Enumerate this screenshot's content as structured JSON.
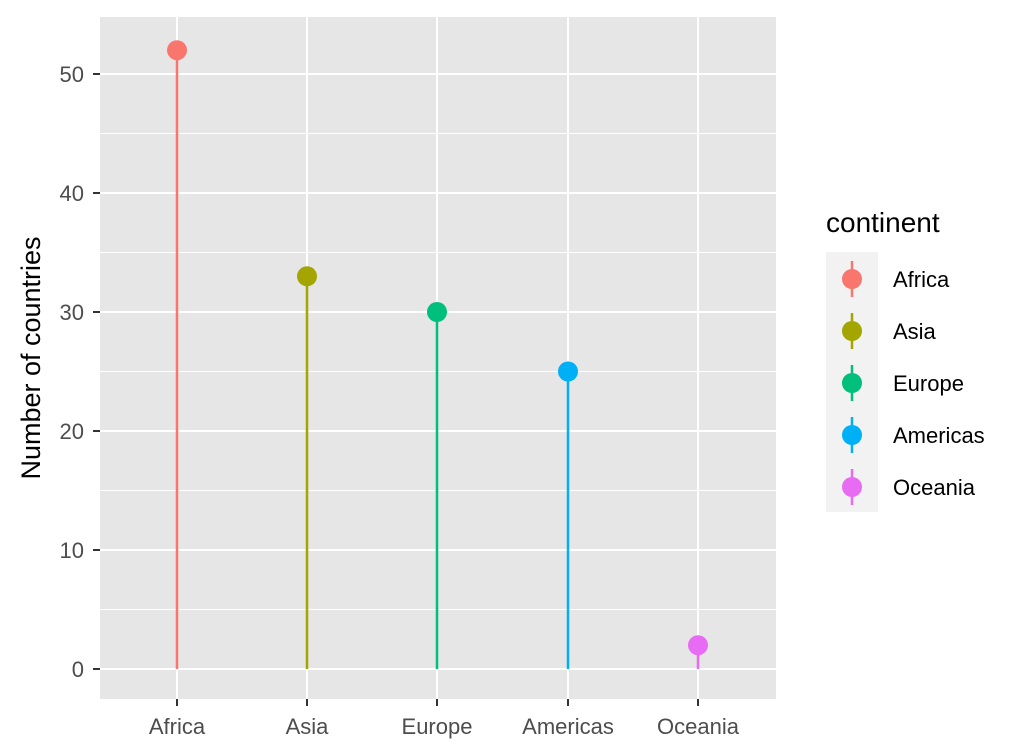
{
  "chart_data": {
    "type": "lollipop",
    "categories": [
      "Africa",
      "Asia",
      "Europe",
      "Americas",
      "Oceania"
    ],
    "values": [
      52,
      33,
      30,
      25,
      2
    ],
    "colors": [
      "#F8766D",
      "#A3A500",
      "#00BF7D",
      "#00B0F6",
      "#E76BF3"
    ],
    "xlabel": "",
    "ylabel": "Number of countries",
    "ylim": [
      0,
      54.5
    ],
    "y_ticks": [
      0,
      10,
      20,
      30,
      40,
      50
    ],
    "y_tick_labels": [
      "0",
      "10",
      "20",
      "30",
      "40",
      "50"
    ],
    "grid": true,
    "legend": {
      "title": "continent",
      "entries": [
        "Africa",
        "Asia",
        "Europe",
        "Americas",
        "Oceania"
      ],
      "placement": "right"
    },
    "panel_background": "#E6E6E6",
    "grid_color": "#FFFFFF"
  }
}
